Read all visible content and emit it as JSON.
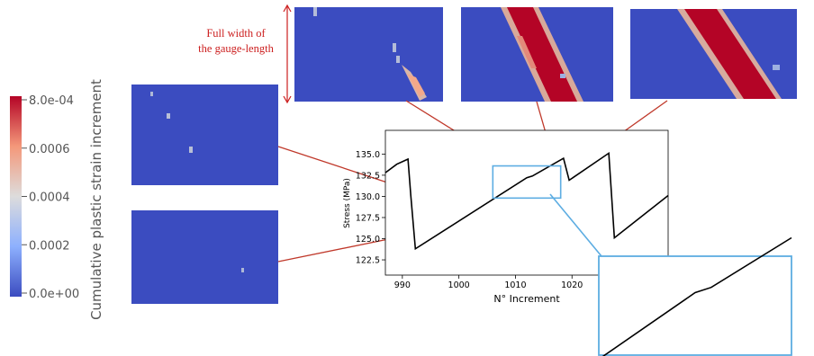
{
  "annotation": {
    "line1": "Full width of",
    "line2": "the gauge-length"
  },
  "colorbar": {
    "title": "Cumulative plastic strain increment",
    "ticks": [
      "8.0e-04",
      "0.0006",
      "0.0004",
      "0.0002",
      "0.0e+00"
    ],
    "colors": [
      "#b40426",
      "#f4987a",
      "#dddcdc",
      "#8db0fe",
      "#3b4cc0"
    ]
  },
  "panel_colors": {
    "field": "#3b4cc0",
    "band": "#b40426",
    "band_edge": "#f4a582",
    "connector": "#c0392b",
    "zoom_box": "#5dade2"
  },
  "chart_data": {
    "type": "line",
    "title": "",
    "xlabel": "N° Increment",
    "ylabel": "Stress (MPa)",
    "xlim": [
      987,
      1037
    ],
    "ylim": [
      120.7,
      137.8
    ],
    "x_ticks": [
      990,
      1000,
      1010,
      1020
    ],
    "x_tick_labels": [
      "990",
      "1000",
      "1010",
      "1020"
    ],
    "y_ticks": [
      122.5,
      125.0,
      127.5,
      130.0,
      132.5,
      135.0
    ],
    "y_tick_labels": [
      "122.5",
      "125.0",
      "127.5",
      "130.0",
      "132.5",
      "135.0"
    ],
    "series": [
      {
        "x": [
          987,
          989,
          991,
          991.5,
          992.3,
          1012.0,
          1013.0,
          1018.5,
          1019.5,
          1026.5,
          1027.5,
          1037
        ],
        "y": [
          132.8,
          133.8,
          134.4,
          130.0,
          123.8,
          132.2,
          132.4,
          134.5,
          131.9,
          135.1,
          125.1,
          130.1
        ]
      }
    ],
    "zoom_box": {
      "x": [
        1006,
        1018
      ],
      "y": [
        129.8,
        133.6
      ]
    }
  }
}
